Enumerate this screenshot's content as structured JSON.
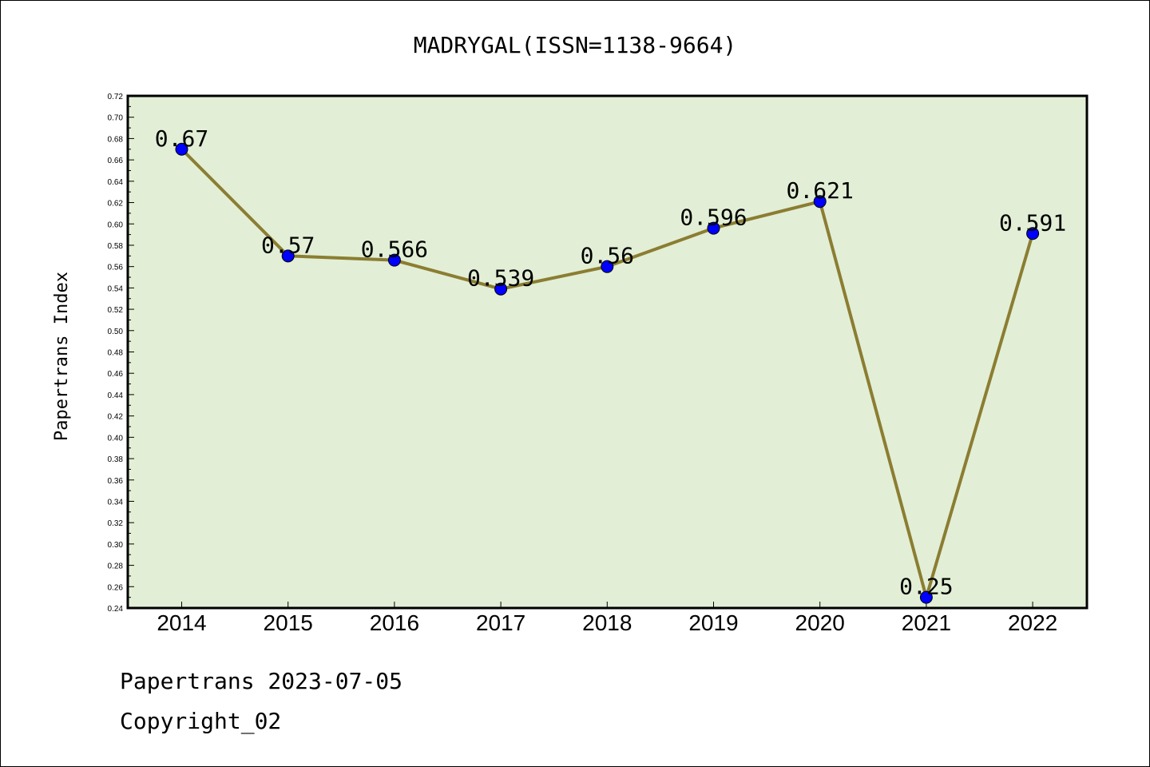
{
  "footer": {
    "source_line": "Papertrans 2023-07-05",
    "copyright_line": "Copyright_02"
  },
  "colors": {
    "plot_background": "#e2efd6",
    "line": "#8b7d32",
    "marker": "#0000ff",
    "frame": "#000000"
  },
  "chart_data": {
    "type": "line",
    "title": "MADRYGAL(ISSN=1138-9664)",
    "xlabel": "",
    "ylabel": "Papertrans Index",
    "categories": [
      "2014",
      "2015",
      "2016",
      "2017",
      "2018",
      "2019",
      "2020",
      "2021",
      "2022"
    ],
    "series": [
      {
        "values": [
          0.67,
          0.57,
          0.566,
          0.539,
          0.56,
          0.596,
          0.621,
          0.25,
          0.591
        ],
        "labels": [
          "0.67",
          "0.57",
          "0.566",
          "0.539",
          "0.56",
          "0.596",
          "0.621",
          "0.25",
          "0.591"
        ]
      }
    ],
    "ylim": [
      0.24,
      0.72
    ],
    "yticks": [
      "0.24",
      "0.26",
      "0.28",
      "0.30",
      "0.32",
      "0.34",
      "0.36",
      "0.38",
      "0.40",
      "0.42",
      "0.44",
      "0.46",
      "0.48",
      "0.50",
      "0.52",
      "0.54",
      "0.56",
      "0.58",
      "0.60",
      "0.62",
      "0.64",
      "0.66",
      "0.68",
      "0.70",
      "0.72"
    ],
    "grid": false,
    "legend": "none"
  }
}
